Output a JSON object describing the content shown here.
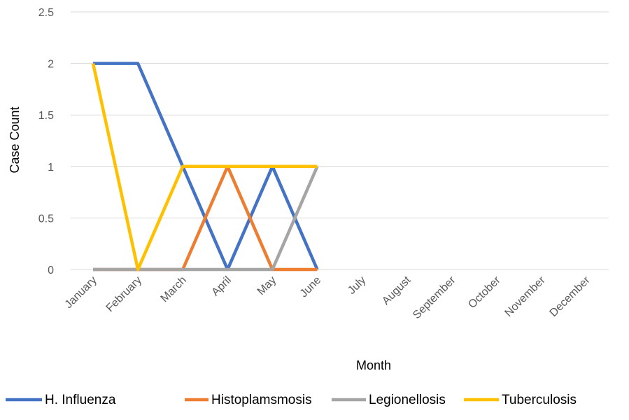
{
  "chart_data": {
    "type": "line",
    "title": "",
    "xlabel": "Month",
    "ylabel": "Case Count",
    "ylim": [
      0,
      2.5
    ],
    "yticks": [
      "0",
      "0.5",
      "1",
      "1.5",
      "2",
      "2.5"
    ],
    "grid": true,
    "legend_position": "bottom",
    "categories": [
      "January",
      "February",
      "March",
      "April",
      "May",
      "June",
      "July",
      "August",
      "September",
      "October",
      "November",
      "December"
    ],
    "series": [
      {
        "name": "H. Influenza",
        "color": "#4472C4",
        "values": [
          2,
          2,
          1,
          0,
          1,
          0,
          null,
          null,
          null,
          null,
          null,
          null
        ]
      },
      {
        "name": "Histoplamsmosis",
        "color": "#ED7D31",
        "values": [
          0,
          0,
          0,
          1,
          0,
          0,
          null,
          null,
          null,
          null,
          null,
          null
        ]
      },
      {
        "name": "Legionellosis",
        "color": "#A5A5A5",
        "values": [
          0,
          0,
          0,
          0,
          0,
          1,
          null,
          null,
          null,
          null,
          null,
          null
        ]
      },
      {
        "name": "Tuberculosis",
        "color": "#FFC000",
        "values": [
          2,
          0,
          1,
          1,
          1,
          1,
          null,
          null,
          null,
          null,
          null,
          null
        ]
      }
    ]
  }
}
